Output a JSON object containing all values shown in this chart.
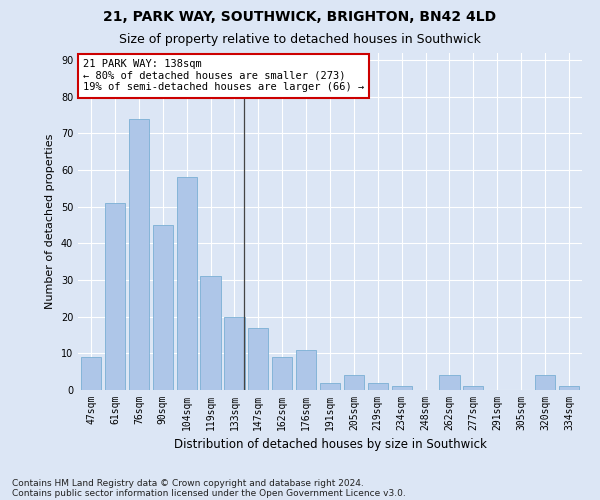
{
  "title1": "21, PARK WAY, SOUTHWICK, BRIGHTON, BN42 4LD",
  "title2": "Size of property relative to detached houses in Southwick",
  "xlabel": "Distribution of detached houses by size in Southwick",
  "ylabel": "Number of detached properties",
  "categories": [
    "47sqm",
    "61sqm",
    "76sqm",
    "90sqm",
    "104sqm",
    "119sqm",
    "133sqm",
    "147sqm",
    "162sqm",
    "176sqm",
    "191sqm",
    "205sqm",
    "219sqm",
    "234sqm",
    "248sqm",
    "262sqm",
    "277sqm",
    "291sqm",
    "305sqm",
    "320sqm",
    "334sqm"
  ],
  "values": [
    9,
    51,
    74,
    45,
    58,
    31,
    20,
    17,
    9,
    11,
    2,
    4,
    2,
    1,
    0,
    4,
    1,
    0,
    0,
    4,
    1
  ],
  "bar_color": "#aec6e8",
  "bar_edgecolor": "#7aafd4",
  "annotation_text_line1": "21 PARK WAY: 138sqm",
  "annotation_text_line2": "← 80% of detached houses are smaller (273)",
  "annotation_text_line3": "19% of semi-detached houses are larger (66) →",
  "annotation_box_facecolor": "#ffffff",
  "annotation_box_edgecolor": "#cc0000",
  "vline_color": "#444444",
  "ylim": [
    0,
    92
  ],
  "yticks": [
    0,
    10,
    20,
    30,
    40,
    50,
    60,
    70,
    80,
    90
  ],
  "bg_color": "#dce6f5",
  "plot_bg_color": "#dce6f5",
  "footnote1": "Contains HM Land Registry data © Crown copyright and database right 2024.",
  "footnote2": "Contains public sector information licensed under the Open Government Licence v3.0.",
  "title1_fontsize": 10,
  "title2_fontsize": 9,
  "xlabel_fontsize": 8.5,
  "ylabel_fontsize": 8,
  "tick_fontsize": 7,
  "annotation_fontsize": 7.5,
  "footnote_fontsize": 6.5,
  "vline_x": 6.42
}
